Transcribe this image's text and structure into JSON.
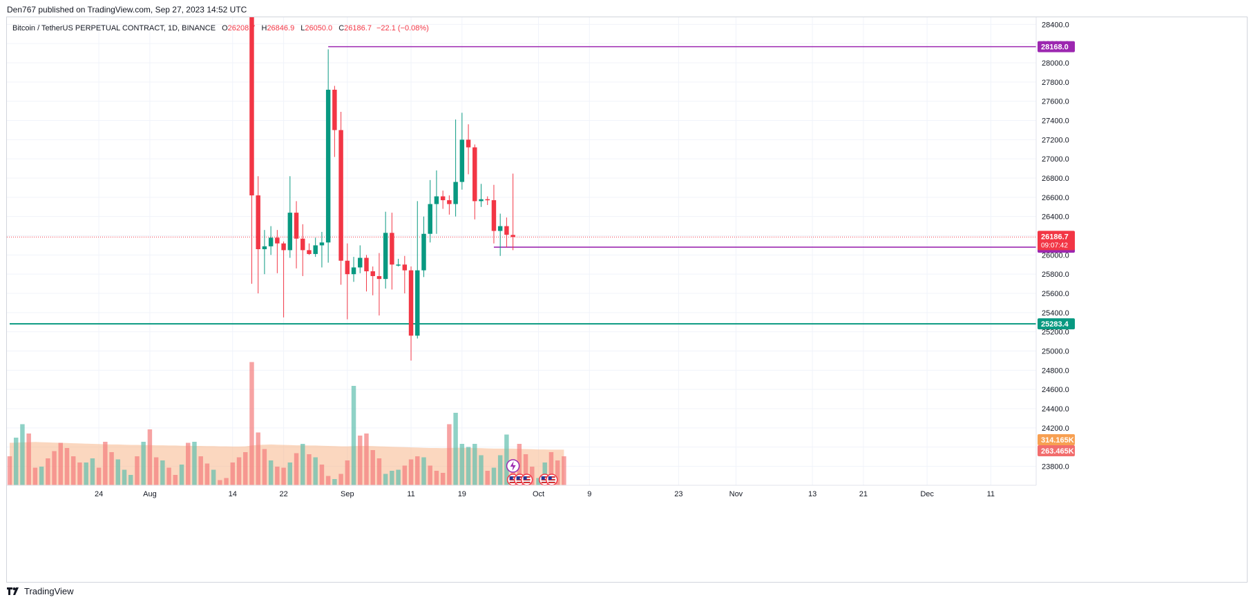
{
  "publish_line": "Den767 published on TradingView.com, Sep 27, 2023 14:52 UTC",
  "legend": {
    "symbol": "Bitcoin / TetherUS PERPETUAL CONTRACT, 1D, BINANCE",
    "o_label": "O",
    "o": "26208.7",
    "h_label": "H",
    "h": "26846.9",
    "l_label": "L",
    "l": "26050.0",
    "c_label": "C",
    "c": "26186.7",
    "change": "−22.1 (−0.08%)"
  },
  "footer": {
    "brand": "TradingView",
    "logo": "tradingview-logo-icon"
  },
  "colors": {
    "up": "#089981",
    "down": "#f23645",
    "level": "#9c27b0",
    "support": "#089981",
    "volume_ma": "#f7b68a"
  },
  "chart_data": {
    "type": "candlestick",
    "symbol": "Bitcoin / TetherUS PERPETUAL CONTRACT",
    "interval": "1D",
    "exchange": "BINANCE",
    "y_ticks": [
      23800,
      24000,
      24200,
      24400,
      24600,
      24800,
      25000,
      25200,
      25400,
      25600,
      25800,
      26000,
      26200,
      26400,
      26600,
      26800,
      27000,
      27200,
      27400,
      27600,
      27800,
      28000,
      28200,
      28400
    ],
    "y_tick_labels": [
      "23800.0",
      "24000.0",
      "24200.0",
      "24400.0",
      "24600.0",
      "24800.0",
      "25000.0",
      "25200.0",
      "25400.0",
      "25600.0",
      "25800.0",
      "26000.0",
      "26200.0",
      "26400.0",
      "26600.0",
      "26800.0",
      "27000.0",
      "27200.0",
      "27400.0",
      "27600.0",
      "27800.0",
      "28000.0",
      "28200.0",
      "28400.0"
    ],
    "ylim": [
      23660,
      28460
    ],
    "x_ticks": [
      {
        "label": "24",
        "date": "2023-07-24"
      },
      {
        "label": "Aug",
        "date": "2023-08-01"
      },
      {
        "label": "14",
        "date": "2023-08-14"
      },
      {
        "label": "22",
        "date": "2023-08-22"
      },
      {
        "label": "Sep",
        "date": "2023-09-01"
      },
      {
        "label": "11",
        "date": "2023-09-11"
      },
      {
        "label": "19",
        "date": "2023-09-19"
      },
      {
        "label": "Oct",
        "date": "2023-10-01"
      },
      {
        "label": "9",
        "date": "2023-10-09"
      },
      {
        "label": "23",
        "date": "2023-10-23"
      },
      {
        "label": "Nov",
        "date": "2023-11-01"
      },
      {
        "label": "13",
        "date": "2023-11-13"
      },
      {
        "label": "21",
        "date": "2023-11-21"
      },
      {
        "label": "Dec",
        "date": "2023-12-01"
      },
      {
        "label": "11",
        "date": "2023-12-11"
      }
    ],
    "xlim": [
      "2023-07-10",
      "2023-12-14"
    ],
    "candles": [
      {
        "date": "2023-08-17",
        "o": 28700,
        "h": 28750,
        "l": 25700,
        "c": 26620
      },
      {
        "date": "2023-08-18",
        "o": 26620,
        "h": 26820,
        "l": 25600,
        "c": 26060
      },
      {
        "date": "2023-08-19",
        "o": 26060,
        "h": 26260,
        "l": 25800,
        "c": 26090
      },
      {
        "date": "2023-08-20",
        "o": 26090,
        "h": 26300,
        "l": 26000,
        "c": 26180
      },
      {
        "date": "2023-08-21",
        "o": 26180,
        "h": 26260,
        "l": 25810,
        "c": 26120
      },
      {
        "date": "2023-08-22",
        "o": 26120,
        "h": 26140,
        "l": 25350,
        "c": 26050
      },
      {
        "date": "2023-08-23",
        "o": 26050,
        "h": 26820,
        "l": 25970,
        "c": 26440
      },
      {
        "date": "2023-08-24",
        "o": 26440,
        "h": 26560,
        "l": 25860,
        "c": 26170
      },
      {
        "date": "2023-08-25",
        "o": 26170,
        "h": 26320,
        "l": 25780,
        "c": 26050
      },
      {
        "date": "2023-08-26",
        "o": 26050,
        "h": 26120,
        "l": 26000,
        "c": 26010
      },
      {
        "date": "2023-08-27",
        "o": 26010,
        "h": 26180,
        "l": 25980,
        "c": 26100
      },
      {
        "date": "2023-08-28",
        "o": 26100,
        "h": 26240,
        "l": 25870,
        "c": 26130
      },
      {
        "date": "2023-08-29",
        "o": 26130,
        "h": 28140,
        "l": 25920,
        "c": 27720
      },
      {
        "date": "2023-08-30",
        "o": 27720,
        "h": 27760,
        "l": 27020,
        "c": 27300
      },
      {
        "date": "2023-08-31",
        "o": 27300,
        "h": 27490,
        "l": 25690,
        "c": 25940
      },
      {
        "date": "2023-09-01",
        "o": 25940,
        "h": 26120,
        "l": 25330,
        "c": 25800
      },
      {
        "date": "2023-09-02",
        "o": 25800,
        "h": 25980,
        "l": 25720,
        "c": 25870
      },
      {
        "date": "2023-09-03",
        "o": 25870,
        "h": 26100,
        "l": 25810,
        "c": 25970
      },
      {
        "date": "2023-09-04",
        "o": 25970,
        "h": 26000,
        "l": 25620,
        "c": 25830
      },
      {
        "date": "2023-09-05",
        "o": 25830,
        "h": 25880,
        "l": 25580,
        "c": 25780
      },
      {
        "date": "2023-09-06",
        "o": 25780,
        "h": 26020,
        "l": 25370,
        "c": 25750
      },
      {
        "date": "2023-09-07",
        "o": 25750,
        "h": 26450,
        "l": 25650,
        "c": 26230
      },
      {
        "date": "2023-09-08",
        "o": 26230,
        "h": 26440,
        "l": 25640,
        "c": 25900
      },
      {
        "date": "2023-09-09",
        "o": 25900,
        "h": 25960,
        "l": 25880,
        "c": 25900
      },
      {
        "date": "2023-09-10",
        "o": 25900,
        "h": 25990,
        "l": 25600,
        "c": 25840
      },
      {
        "date": "2023-09-11",
        "o": 25840,
        "h": 25880,
        "l": 24900,
        "c": 25160
      },
      {
        "date": "2023-09-12",
        "o": 25160,
        "h": 26560,
        "l": 25130,
        "c": 25840
      },
      {
        "date": "2023-09-13",
        "o": 25840,
        "h": 26400,
        "l": 25770,
        "c": 26220
      },
      {
        "date": "2023-09-14",
        "o": 26220,
        "h": 26780,
        "l": 26130,
        "c": 26530
      },
      {
        "date": "2023-09-15",
        "o": 26530,
        "h": 26880,
        "l": 26220,
        "c": 26610
      },
      {
        "date": "2023-09-16",
        "o": 26610,
        "h": 26670,
        "l": 26480,
        "c": 26570
      },
      {
        "date": "2023-09-17",
        "o": 26570,
        "h": 26620,
        "l": 26420,
        "c": 26530
      },
      {
        "date": "2023-09-18",
        "o": 26530,
        "h": 27410,
        "l": 26400,
        "c": 26760
      },
      {
        "date": "2023-09-19",
        "o": 26760,
        "h": 27480,
        "l": 26680,
        "c": 27200
      },
      {
        "date": "2023-09-20",
        "o": 27200,
        "h": 27360,
        "l": 26840,
        "c": 27120
      },
      {
        "date": "2023-09-21",
        "o": 27120,
        "h": 27150,
        "l": 26370,
        "c": 26560
      },
      {
        "date": "2023-09-22",
        "o": 26560,
        "h": 26740,
        "l": 26500,
        "c": 26580
      },
      {
        "date": "2023-09-23",
        "o": 26580,
        "h": 26610,
        "l": 26520,
        "c": 26570
      },
      {
        "date": "2023-09-24",
        "o": 26570,
        "h": 26730,
        "l": 26120,
        "c": 26250
      },
      {
        "date": "2023-09-25",
        "o": 26250,
        "h": 26430,
        "l": 25990,
        "c": 26300
      },
      {
        "date": "2023-09-26",
        "o": 26300,
        "h": 26390,
        "l": 26080,
        "c": 26210
      },
      {
        "date": "2023-09-27",
        "o": 26208.7,
        "h": 26846.9,
        "l": 26050,
        "c": 26186.7
      }
    ],
    "volume_series": {
      "name": "Volume",
      "ma_name": "Volume MA",
      "max": 600,
      "start_date": "2023-07-10",
      "bars": [
        {
          "v": 140,
          "up": false
        },
        {
          "v": 230,
          "up": true
        },
        {
          "v": 295,
          "up": true
        },
        {
          "v": 250,
          "up": false
        },
        {
          "v": 85,
          "up": false
        },
        {
          "v": 90,
          "up": true
        },
        {
          "v": 130,
          "up": false
        },
        {
          "v": 165,
          "up": false
        },
        {
          "v": 205,
          "up": false
        },
        {
          "v": 180,
          "up": false
        },
        {
          "v": 140,
          "up": false
        },
        {
          "v": 110,
          "up": false
        },
        {
          "v": 110,
          "up": true
        },
        {
          "v": 130,
          "up": true
        },
        {
          "v": 85,
          "up": false
        },
        {
          "v": 210,
          "up": false
        },
        {
          "v": 160,
          "up": false
        },
        {
          "v": 125,
          "up": true
        },
        {
          "v": 75,
          "up": true
        },
        {
          "v": 50,
          "up": true
        },
        {
          "v": 140,
          "up": false
        },
        {
          "v": 210,
          "up": true
        },
        {
          "v": 270,
          "up": false
        },
        {
          "v": 135,
          "up": false
        },
        {
          "v": 120,
          "up": true
        },
        {
          "v": 85,
          "up": false
        },
        {
          "v": 50,
          "up": false
        },
        {
          "v": 100,
          "up": true
        },
        {
          "v": 205,
          "up": false
        },
        {
          "v": 210,
          "up": true
        },
        {
          "v": 140,
          "up": false
        },
        {
          "v": 105,
          "up": false
        },
        {
          "v": 75,
          "up": true
        },
        {
          "v": 25,
          "up": false
        },
        {
          "v": 35,
          "up": false
        },
        {
          "v": 110,
          "up": false
        },
        {
          "v": 135,
          "up": false
        },
        {
          "v": 160,
          "up": false
        },
        {
          "v": 595,
          "up": false
        },
        {
          "v": 255,
          "up": false
        },
        {
          "v": 175,
          "up": false
        },
        {
          "v": 120,
          "up": true
        },
        {
          "v": 90,
          "up": false
        },
        {
          "v": 85,
          "up": false
        },
        {
          "v": 110,
          "up": true
        },
        {
          "v": 155,
          "up": false
        },
        {
          "v": 200,
          "up": true
        },
        {
          "v": 150,
          "up": false
        },
        {
          "v": 135,
          "up": true
        },
        {
          "v": 100,
          "up": false
        },
        {
          "v": 45,
          "up": false
        },
        {
          "v": 30,
          "up": true
        },
        {
          "v": 55,
          "up": false
        },
        {
          "v": 120,
          "up": false
        },
        {
          "v": 480,
          "up": true
        },
        {
          "v": 240,
          "up": false
        },
        {
          "v": 250,
          "up": false
        },
        {
          "v": 170,
          "up": false
        },
        {
          "v": 130,
          "up": false
        },
        {
          "v": 55,
          "up": true
        },
        {
          "v": 70,
          "up": true
        },
        {
          "v": 75,
          "up": true
        },
        {
          "v": 95,
          "up": false
        },
        {
          "v": 125,
          "up": false
        },
        {
          "v": 140,
          "up": false
        },
        {
          "v": 135,
          "up": true
        },
        {
          "v": 95,
          "up": false
        },
        {
          "v": 70,
          "up": false
        },
        {
          "v": 60,
          "up": false
        },
        {
          "v": 295,
          "up": false
        },
        {
          "v": 350,
          "up": true
        },
        {
          "v": 200,
          "up": true
        },
        {
          "v": 185,
          "up": true
        },
        {
          "v": 200,
          "up": true
        },
        {
          "v": 145,
          "up": true
        },
        {
          "v": 70,
          "up": false
        },
        {
          "v": 85,
          "up": true
        },
        {
          "v": 145,
          "up": true
        },
        {
          "v": 245,
          "up": true
        },
        {
          "v": 125,
          "up": false
        },
        {
          "v": 200,
          "up": false
        },
        {
          "v": 150,
          "up": false
        },
        {
          "v": 90,
          "up": false
        },
        {
          "v": 35,
          "up": true
        },
        {
          "v": 110,
          "up": true
        },
        {
          "v": 160,
          "up": false
        },
        {
          "v": 120,
          "up": false
        },
        {
          "v": 140,
          "up": false
        }
      ],
      "ma": [
        205,
        206,
        207,
        208,
        209,
        208,
        207,
        206,
        205,
        204,
        203,
        202,
        201,
        200,
        199,
        198,
        197,
        197,
        196,
        195,
        195,
        194,
        194,
        193,
        193,
        192,
        192,
        191,
        191,
        190,
        190,
        189,
        189,
        188,
        188,
        187,
        187,
        188,
        192,
        195,
        196,
        197,
        196,
        195,
        194,
        193,
        193,
        192,
        192,
        191,
        190,
        189,
        188,
        188,
        189,
        190,
        190,
        189,
        188,
        187,
        186,
        185,
        184,
        183,
        182,
        181,
        180,
        180,
        179,
        180,
        181,
        181,
        181,
        180,
        179,
        178,
        177,
        177,
        177,
        177,
        176,
        175,
        174,
        173,
        173,
        172,
        172,
        172
      ]
    },
    "levels": [
      {
        "name": "resistance",
        "value": 28168,
        "label": "28168.0",
        "start_date": "2023-08-29",
        "color": "#9c27b0"
      },
      {
        "name": "support",
        "value": 26081,
        "label": "26081.0",
        "start_date": "2023-09-24",
        "color": "#9c27b0"
      },
      {
        "name": "key-level",
        "value": 25283.4,
        "label": "25283.4",
        "start_date": "2023-07-10",
        "color": "#089981"
      }
    ],
    "last_price": {
      "value": 26186.7,
      "label": "26186.7",
      "countdown": "09:07:42"
    },
    "volume_labels": [
      {
        "name": "volume-ma",
        "label": "314.165K",
        "color": "#f7a052"
      },
      {
        "name": "volume",
        "label": "263.465K",
        "color": "#f26d6d"
      }
    ],
    "event_markers": [
      {
        "name": "lightning-marker",
        "icon": "lightning-icon",
        "date": "2023-09-27",
        "count": 1
      },
      {
        "name": "us-flag-marker",
        "icon": "us-flag-icon",
        "date": "2023-09-27",
        "count": 3
      },
      {
        "name": "us-flag-marker",
        "icon": "us-flag-icon",
        "date": "2023-10-02",
        "count": 2
      }
    ]
  }
}
